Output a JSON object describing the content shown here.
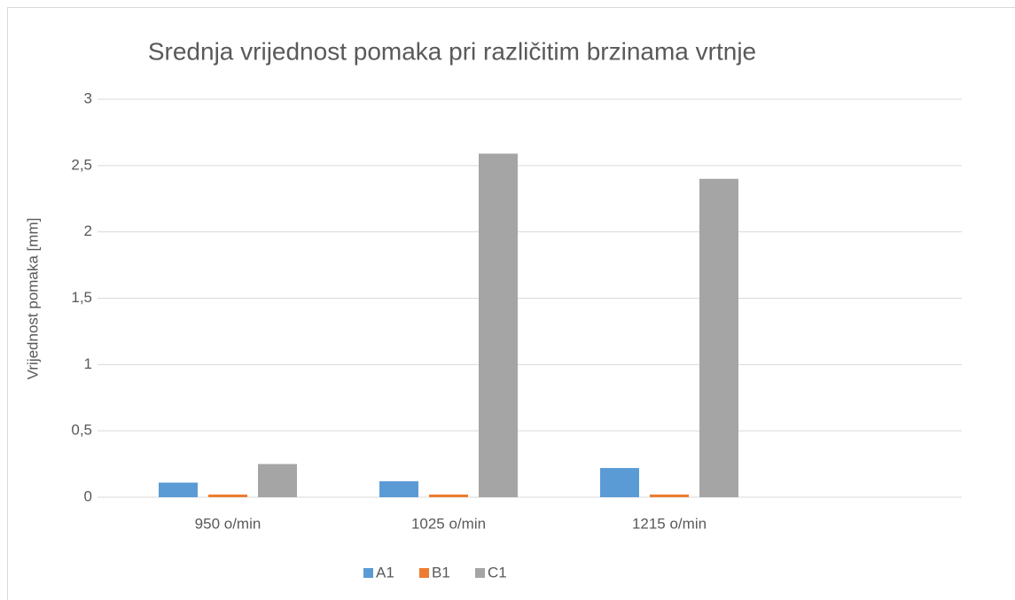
{
  "chart_data": {
    "type": "bar",
    "title": "Srednja vrijednost pomaka pri različitim brzinama vrtnje",
    "y_label": "Vrijednost pomaka [mm]",
    "categories": [
      "950 o/min",
      "1025 o/min",
      "1215 o/min"
    ],
    "series": [
      {
        "name": "A1",
        "color": "#5b9bd5",
        "values": [
          0.11,
          0.12,
          0.22
        ]
      },
      {
        "name": "B1",
        "color": "#ed7d31",
        "values": [
          0.02,
          0.02,
          0.02
        ]
      },
      {
        "name": "C1",
        "color": "#a5a5a5",
        "values": [
          0.25,
          2.59,
          2.4
        ]
      }
    ],
    "ylim": [
      0,
      3
    ],
    "yticks": [
      0,
      {
        "value": 0.5,
        "label": "0,5"
      },
      1,
      {
        "value": 1.5,
        "label": "1,5"
      },
      2,
      {
        "value": 2.5,
        "label": "2,5"
      },
      3
    ],
    "grid": true,
    "legend": "bottom"
  }
}
